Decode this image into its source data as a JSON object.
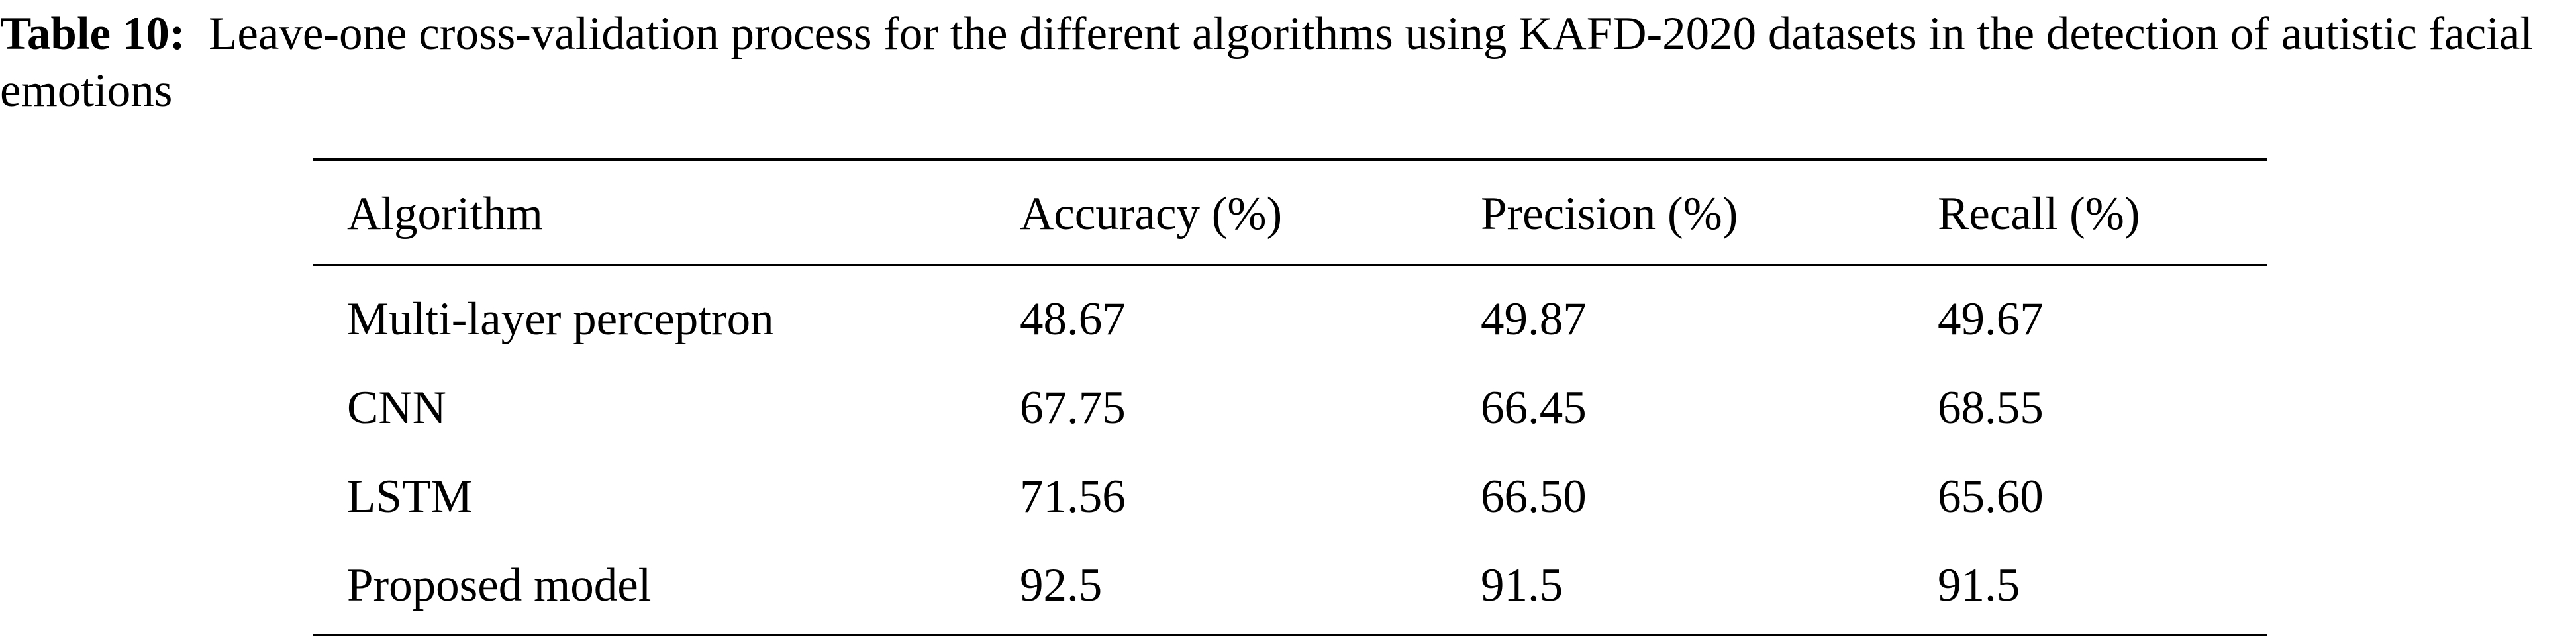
{
  "caption": {
    "label": "Table 10:",
    "text": "Leave-one cross-validation process for the different algorithms using KAFD-2020 datasets in the detection of autistic facial emotions"
  },
  "table": {
    "header": [
      "Algorithm",
      "Accuracy (%)",
      "Precision (%)",
      "Recall (%)"
    ],
    "rows": [
      [
        "Multi-layer perceptron",
        "48.67",
        "49.87",
        "49.67"
      ],
      [
        "CNN",
        "67.75",
        "66.45",
        "68.55"
      ],
      [
        "LSTM",
        "71.56",
        "66.50",
        "65.60"
      ],
      [
        "Proposed model",
        "92.5",
        "91.5",
        "91.5"
      ]
    ]
  }
}
